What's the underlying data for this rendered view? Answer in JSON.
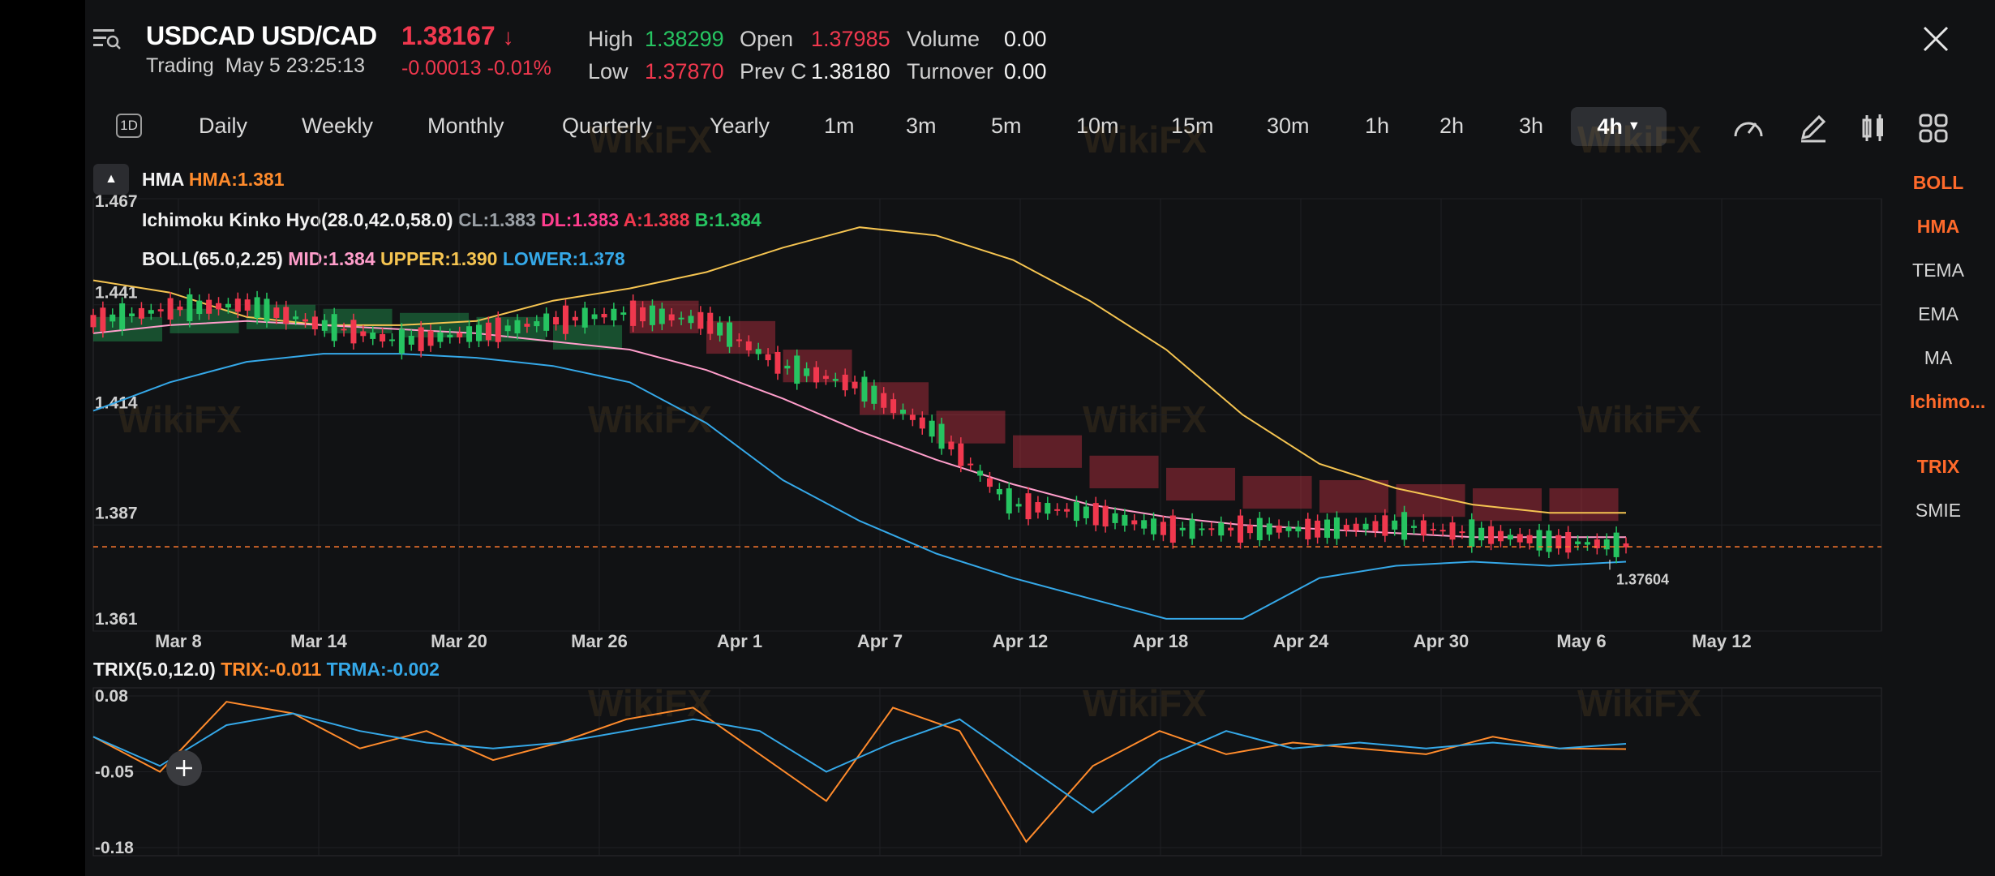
{
  "header": {
    "symbol": "USDCAD USD/CAD",
    "price": "1.38167",
    "price_direction": "down-arrow-icon",
    "status": "Trading",
    "datetime": "May 5 23:25:13",
    "change": "-0.00013",
    "change_pct": "-0.01%",
    "stats": {
      "high_label": "High",
      "high": "1.38299",
      "low_label": "Low",
      "low": "1.37870",
      "open_label": "Open",
      "open": "1.37985",
      "prevc_label": "Prev C",
      "prevc": "1.38180",
      "volume_label": "Volume",
      "volume": "0.00",
      "turnover_label": "Turnover",
      "turnover": "0.00"
    }
  },
  "timeframes": {
    "day_icon": "1D",
    "items": [
      "Daily",
      "Weekly",
      "Monthly",
      "Quarterly",
      "Yearly",
      "1m",
      "3m",
      "5m",
      "10m",
      "15m",
      "30m",
      "1h",
      "2h",
      "3h"
    ],
    "selected": "4h"
  },
  "toolbar_icons": [
    "gauge-icon",
    "draw-pen-icon",
    "candle-type-icon",
    "grid-layout-icon"
  ],
  "legends": {
    "hma_name": "HMA",
    "hma_value": "HMA:1.381",
    "ichimoku_name": "Ichimoku Kinko Hyo(28.0,42.0,58.0)",
    "ichimoku_cl": "CL:1.383",
    "ichimoku_dl": "DL:1.383",
    "ichimoku_a": "A:1.388",
    "ichimoku_b": "B:1.384",
    "boll_name": "BOLL(65.0,2.25)",
    "boll_mid": "MID:1.384",
    "boll_upper": "UPPER:1.390",
    "boll_lower": "LOWER:1.378",
    "trix_name": "TRIX(5.0,12.0)",
    "trix_value": "TRIX:-0.011",
    "trma_value": "TRMA:-0.002"
  },
  "indicators": {
    "main": [
      {
        "label": "BOLL",
        "active": true
      },
      {
        "label": "HMA",
        "active": true
      },
      {
        "label": "TEMA",
        "active": false
      },
      {
        "label": "EMA",
        "active": false
      },
      {
        "label": "MA",
        "active": false
      },
      {
        "label": "Ichimo...",
        "active": true
      }
    ],
    "sub": [
      {
        "label": "TRIX",
        "active": true
      },
      {
        "label": "SMIE",
        "active": false
      }
    ]
  },
  "watermark": "WikiFX",
  "colors": {
    "up": "#26c461",
    "down": "#f0384e",
    "accent": "#ff6a2b",
    "boll_upper": "#f5c451",
    "boll_mid": "#ff9ecb",
    "boll_lower": "#35a8e8",
    "ich_cl": "#9aa0a6",
    "ich_dl": "#ff3e8e",
    "ich_a": "#f0384e",
    "ich_b": "#26c461",
    "hma": "#ff8b2c",
    "trix": "#ff8b2c",
    "trma": "#35a8e8",
    "last_price": "#ff7a2e"
  },
  "chart_data": [
    {
      "type": "candlestick",
      "yaxis_ticks": [
        "1.467",
        "1.441",
        "1.414",
        "1.387",
        "1.361"
      ],
      "ylim": [
        1.361,
        1.467
      ],
      "x_ticks": [
        "Mar 8",
        "Mar 14",
        "Mar 20",
        "Mar 26",
        "Apr 1",
        "Apr 7",
        "Apr 12",
        "Apr 18",
        "Apr 24",
        "Apr 30",
        "May 6",
        "May 12"
      ],
      "last_price": 1.38167,
      "low_marker": "1.37604",
      "grid": true,
      "series": [
        {
          "name": "BOLL UPPER",
          "values": [
            1.447,
            1.444,
            1.438,
            1.436,
            1.436,
            1.437,
            1.442,
            1.445,
            1.449,
            1.455,
            1.46,
            1.458,
            1.452,
            1.442,
            1.43,
            1.414,
            1.402,
            1.396,
            1.392,
            1.39,
            1.39
          ]
        },
        {
          "name": "BOLL MID",
          "values": [
            1.434,
            1.436,
            1.437,
            1.436,
            1.435,
            1.434,
            1.432,
            1.43,
            1.425,
            1.418,
            1.41,
            1.403,
            1.397,
            1.392,
            1.389,
            1.387,
            1.386,
            1.385,
            1.384,
            1.384,
            1.384
          ]
        },
        {
          "name": "BOLL LOWER",
          "values": [
            1.415,
            1.422,
            1.427,
            1.429,
            1.429,
            1.428,
            1.426,
            1.422,
            1.412,
            1.398,
            1.388,
            1.38,
            1.374,
            1.369,
            1.364,
            1.364,
            1.374,
            1.377,
            1.378,
            1.377,
            1.378
          ]
        },
        {
          "name": "Close",
          "values": [
            1.437,
            1.44,
            1.441,
            1.436,
            1.432,
            1.434,
            1.437,
            1.439,
            1.437,
            1.426,
            1.421,
            1.41,
            1.392,
            1.39,
            1.386,
            1.386,
            1.386,
            1.387,
            1.385,
            1.383,
            1.382
          ]
        }
      ]
    },
    {
      "type": "line",
      "yaxis_ticks": [
        "0.08",
        "-0.05",
        "-0.18"
      ],
      "ylim": [
        -0.18,
        0.08
      ],
      "series": [
        {
          "name": "TRIX",
          "values": [
            0.01,
            -0.05,
            0.07,
            0.05,
            -0.01,
            0.02,
            -0.03,
            0.0,
            0.04,
            0.06,
            -0.02,
            -0.1,
            0.06,
            0.02,
            -0.17,
            -0.04,
            0.02,
            -0.02,
            0.0,
            -0.01,
            -0.02,
            0.01,
            -0.01,
            -0.011
          ]
        },
        {
          "name": "TRMA",
          "values": [
            0.01,
            -0.04,
            0.03,
            0.05,
            0.02,
            0.0,
            -0.01,
            0.0,
            0.02,
            0.04,
            0.02,
            -0.05,
            0.0,
            0.04,
            -0.04,
            -0.12,
            -0.03,
            0.02,
            -0.01,
            0.0,
            -0.01,
            0.0,
            -0.01,
            -0.002
          ]
        }
      ]
    }
  ]
}
